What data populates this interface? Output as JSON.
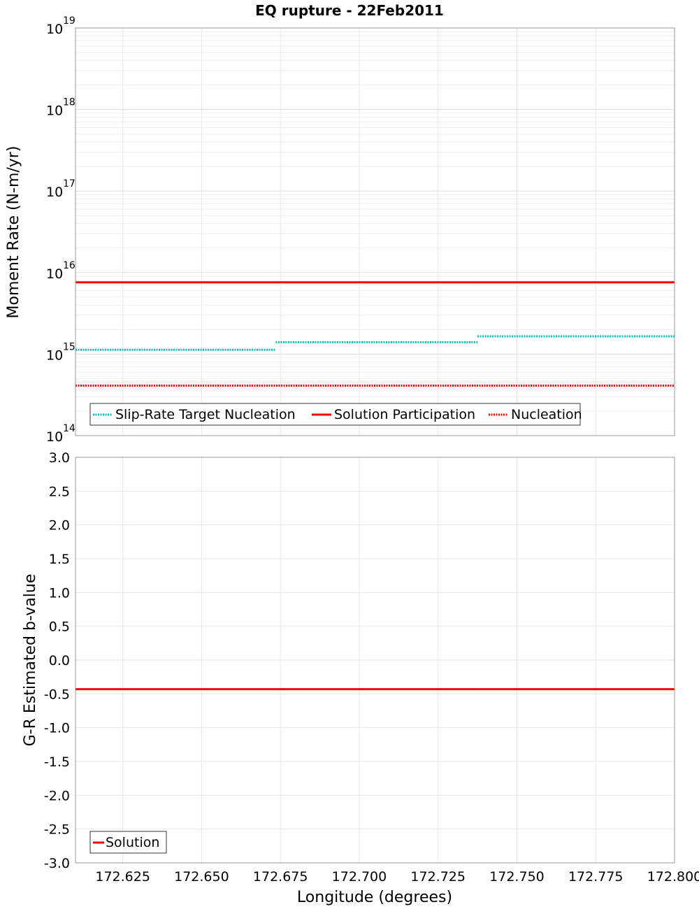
{
  "chart_data": [
    {
      "type": "line",
      "title": "EQ rupture - 22Feb2011",
      "xlabel": "Longitude (degrees)",
      "ylabel": "Moment Rate (N-m/yr)",
      "yscale": "log",
      "xlim": [
        172.61,
        172.8
      ],
      "ylim": [
        100000000000000.0,
        1e+19
      ],
      "y_tick_base": "10",
      "y_tick_exponents": [
        "14",
        "15",
        "16",
        "17",
        "18",
        "19"
      ],
      "grid": true,
      "legend_position": "bottom-left",
      "series": [
        {
          "name": "Slip-Rate Target Nucleation",
          "color": "#00bfbf",
          "style": "dotted",
          "segments": [
            {
              "x": [
                172.61,
                172.6735
              ],
              "y": 1130000000000000.0
            },
            {
              "x": [
                172.6735,
                172.7375
              ],
              "y": 1400000000000000.0
            },
            {
              "x": [
                172.7375,
                172.8
              ],
              "y": 1650000000000000.0
            }
          ]
        },
        {
          "name": "Solution Participation",
          "color": "#ff0000",
          "style": "solid",
          "segments": [
            {
              "x": [
                172.61,
                172.6735
              ],
              "y": 7600000000000000.0
            },
            {
              "x": [
                172.6735,
                172.7375
              ],
              "y": 7600000000000000.0
            },
            {
              "x": [
                172.7375,
                172.8
              ],
              "y": 7600000000000000.0
            }
          ]
        },
        {
          "name": "Nucleation",
          "color": "#ff0000",
          "style": "dotted",
          "segments": [
            {
              "x": [
                172.61,
                172.8
              ],
              "y": 410000000000000.0
            }
          ]
        }
      ]
    },
    {
      "type": "line",
      "title": "",
      "xlabel": "Longitude (degrees)",
      "ylabel": "G-R Estimated b-value",
      "xlim": [
        172.61,
        172.8
      ],
      "ylim": [
        -3.0,
        3.0
      ],
      "x_ticks": [
        "172.625",
        "172.650",
        "172.675",
        "172.700",
        "172.725",
        "172.750",
        "172.775",
        "172.800"
      ],
      "y_ticks": [
        "3.0",
        "2.5",
        "2.0",
        "1.5",
        "1.0",
        "0.5",
        "0.0",
        "-0.5",
        "-1.0",
        "-1.5",
        "-2.0",
        "-2.5",
        "-3.0"
      ],
      "grid": true,
      "legend_position": "bottom-left",
      "series": [
        {
          "name": "Solution",
          "color": "#ff0000",
          "style": "solid",
          "segments": [
            {
              "x": [
                172.61,
                172.6735
              ],
              "y": -0.43
            },
            {
              "x": [
                172.6735,
                172.7375
              ],
              "y": -0.43
            },
            {
              "x": [
                172.7375,
                172.8
              ],
              "y": -0.43
            }
          ]
        }
      ]
    }
  ]
}
